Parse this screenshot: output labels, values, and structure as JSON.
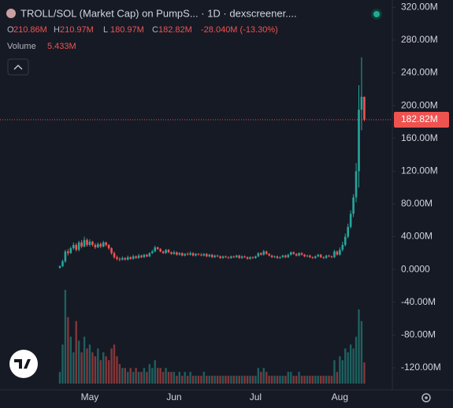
{
  "chart_data": {
    "type": "candlestick",
    "title": "TROLL/SOL (Market Cap) on PumpS... · 1D · dexscreener....",
    "ohlc_header": [
      {
        "key": "O",
        "value": "210.86M"
      },
      {
        "key": "H",
        "value": "210.97M"
      },
      {
        "key": "L",
        "value": "180.97M"
      },
      {
        "key": "C",
        "value": "182.82M"
      }
    ],
    "change_label": "-28.040M (-13.30%)",
    "volume_title": "Volume",
    "volume_last_label": "5.433M",
    "last_price_label": "182.82M",
    "up_color": "#26a69a",
    "down_color": "#ef5350",
    "grid": false,
    "ylim": [
      -147,
      329
    ],
    "yticks": [
      {
        "value": 320,
        "label": "320.00M"
      },
      {
        "value": 280,
        "label": "280.00M"
      },
      {
        "value": 240,
        "label": "240.00M"
      },
      {
        "value": 200,
        "label": "200.00M"
      },
      {
        "value": 160,
        "label": "160.00M"
      },
      {
        "value": 120,
        "label": "120.00M"
      },
      {
        "value": 80,
        "label": "80.00M"
      },
      {
        "value": 40,
        "label": "40.00M"
      },
      {
        "value": 0,
        "label": "0.0000"
      },
      {
        "value": -40,
        "label": "-40.00M"
      },
      {
        "value": -80,
        "label": "-80.00M"
      },
      {
        "value": -120,
        "label": "-120.00M"
      }
    ],
    "categories": [
      null,
      null,
      null,
      null,
      null,
      null,
      null,
      null,
      null,
      null,
      null,
      "May",
      null,
      null,
      null,
      null,
      null,
      null,
      null,
      null,
      null,
      null,
      null,
      null,
      null,
      null,
      null,
      null,
      null,
      null,
      null,
      null,
      null,
      null,
      null,
      null,
      null,
      null,
      null,
      null,
      null,
      null,
      "Jun",
      null,
      null,
      null,
      null,
      null,
      null,
      null,
      null,
      null,
      null,
      null,
      null,
      null,
      null,
      null,
      null,
      null,
      null,
      null,
      null,
      null,
      null,
      null,
      null,
      null,
      null,
      null,
      null,
      null,
      "Jul",
      null,
      null,
      null,
      null,
      null,
      null,
      null,
      null,
      null,
      null,
      null,
      null,
      null,
      null,
      null,
      null,
      null,
      null,
      null,
      null,
      null,
      null,
      null,
      null,
      null,
      null,
      null,
      null,
      null,
      null,
      "Aug",
      null,
      null,
      null,
      null,
      null,
      null,
      null,
      null,
      null
    ],
    "open": [
      2,
      4,
      10,
      22,
      20,
      26,
      30,
      24,
      33,
      28,
      36,
      30,
      34,
      30,
      27,
      31,
      28,
      33,
      30,
      26,
      20,
      15,
      13,
      12,
      14,
      12,
      15,
      13,
      16,
      14,
      17,
      15,
      18,
      16,
      20,
      22,
      27,
      25,
      22,
      20,
      24,
      21,
      19,
      21,
      18,
      20,
      17,
      19,
      18,
      20,
      17,
      19,
      18,
      17,
      19,
      16,
      18,
      15,
      17,
      16,
      14,
      16,
      15,
      14,
      16,
      15,
      17,
      14,
      16,
      15,
      13,
      15,
      14,
      16,
      20,
      18,
      22,
      19,
      17,
      15,
      16,
      14,
      15,
      17,
      15,
      18,
      21,
      19,
      17,
      20,
      18,
      16,
      17,
      15,
      14,
      16,
      18,
      15,
      14,
      17,
      16,
      15,
      22,
      18,
      24,
      30,
      40,
      52,
      68,
      88,
      120,
      195,
      210.86
    ],
    "high": [
      5,
      12,
      24,
      25,
      28,
      33,
      32,
      35,
      36,
      40,
      38,
      37,
      35,
      32,
      33,
      33,
      35,
      34,
      31,
      27,
      22,
      17,
      15,
      16,
      15,
      17,
      16,
      18,
      17,
      19,
      18,
      19,
      19,
      21,
      24,
      29,
      28,
      26,
      23,
      25,
      25,
      22,
      23,
      22,
      21,
      21,
      20,
      21,
      22,
      21,
      20,
      20,
      20,
      20,
      20,
      19,
      19,
      18,
      18,
      17,
      17,
      17,
      16,
      17,
      17,
      18,
      18,
      17,
      17,
      16,
      16,
      16,
      17,
      21,
      21,
      24,
      23,
      20,
      18,
      17,
      17,
      16,
      18,
      18,
      19,
      22,
      22,
      20,
      21,
      21,
      19,
      18,
      18,
      16,
      17,
      19,
      19,
      16,
      18,
      18,
      17,
      24,
      23,
      27,
      34,
      44,
      56,
      72,
      92,
      130,
      225,
      259,
      210.97
    ],
    "low": [
      1,
      3,
      8,
      17,
      19,
      24,
      22,
      22,
      26,
      27,
      28,
      28,
      28,
      25,
      26,
      26,
      27,
      28,
      24,
      18,
      13,
      11,
      10,
      11,
      11,
      11,
      12,
      12,
      13,
      13,
      14,
      14,
      15,
      15,
      19,
      21,
      24,
      21,
      19,
      19,
      20,
      18,
      18,
      17,
      17,
      16,
      16,
      17,
      17,
      16,
      16,
      17,
      16,
      16,
      15,
      15,
      14,
      14,
      15,
      13,
      13,
      14,
      13,
      13,
      14,
      14,
      13,
      13,
      14,
      12,
      12,
      13,
      13,
      15,
      17,
      17,
      18,
      16,
      14,
      14,
      13,
      13,
      14,
      14,
      14,
      17,
      18,
      16,
      16,
      17,
      15,
      15,
      14,
      13,
      13,
      15,
      14,
      13,
      13,
      15,
      14,
      14,
      17,
      17,
      22,
      28,
      38,
      50,
      64,
      82,
      100,
      170,
      180.97
    ],
    "close": [
      4,
      10,
      22,
      20,
      26,
      30,
      24,
      33,
      28,
      36,
      30,
      34,
      30,
      27,
      31,
      28,
      33,
      30,
      26,
      20,
      15,
      13,
      12,
      14,
      12,
      15,
      13,
      16,
      14,
      17,
      15,
      18,
      16,
      20,
      22,
      27,
      25,
      22,
      20,
      24,
      21,
      19,
      21,
      18,
      20,
      17,
      19,
      18,
      20,
      17,
      19,
      18,
      17,
      19,
      16,
      18,
      15,
      17,
      16,
      14,
      16,
      15,
      14,
      16,
      15,
      17,
      14,
      16,
      15,
      13,
      15,
      14,
      16,
      20,
      18,
      22,
      19,
      17,
      15,
      16,
      14,
      15,
      17,
      15,
      18,
      21,
      19,
      17,
      20,
      18,
      16,
      17,
      15,
      14,
      16,
      18,
      15,
      14,
      17,
      16,
      15,
      22,
      18,
      24,
      30,
      40,
      52,
      68,
      88,
      120,
      195,
      210.86,
      182.82
    ],
    "volume": [
      3,
      10,
      24,
      17,
      12,
      8,
      16,
      11,
      8,
      12,
      9,
      10,
      8,
      7,
      9,
      6,
      8,
      7,
      6,
      9,
      10,
      7,
      5,
      4,
      4,
      3,
      4,
      3,
      4,
      3,
      3,
      4,
      3,
      5,
      4,
      6,
      4,
      4,
      3,
      4,
      3,
      3,
      3,
      2,
      3,
      2,
      3,
      2,
      3,
      2,
      2,
      2,
      2,
      3,
      2,
      2,
      2,
      2,
      2,
      2,
      2,
      2,
      2,
      2,
      2,
      2,
      2,
      2,
      2,
      2,
      2,
      2,
      2,
      4,
      3,
      4,
      3,
      2,
      2,
      2,
      2,
      2,
      2,
      2,
      3,
      3,
      2,
      2,
      3,
      2,
      2,
      2,
      2,
      2,
      2,
      2,
      2,
      2,
      2,
      2,
      2,
      6,
      3,
      7,
      6,
      9,
      8,
      10,
      9,
      12,
      19,
      16,
      5.433
    ]
  }
}
